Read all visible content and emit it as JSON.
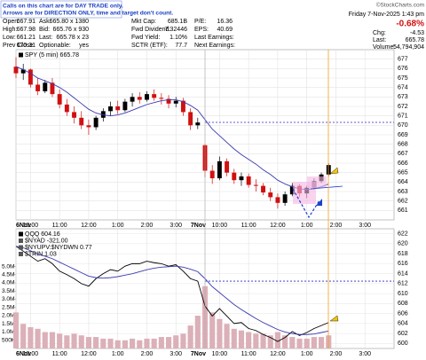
{
  "banner": [
    "Calls on this chart are for DAY TRADE only.",
    "Arrows are for DIRECTION ONLY, time and target don't count."
  ],
  "watermark": "©StockCharts.com",
  "quote": [
    [
      [
        "Open:",
        "667.91"
      ],
      [
        "Ask:",
        "665.80 x 1380"
      ],
      [
        "Mkt Cap:",
        "685.1B"
      ],
      [
        "P/E:",
        "16.36"
      ]
    ],
    [
      [
        "High:",
        "667.98"
      ],
      [
        "Bid:",
        "665.76 x 930"
      ],
      [
        "Fwd Dividend:",
        "7.32446"
      ],
      [
        "EPS:",
        "40.69"
      ]
    ],
    [
      [
        "Low:",
        "661.21"
      ],
      [
        "Last:",
        "665.78 x 23"
      ],
      [
        "Fwd Yield:",
        "1.10%"
      ],
      [
        "Last Earnings:"
      ]
    ],
    [
      [
        "Prev Close:",
        "670.31"
      ],
      [
        "Optionable:",
        "yes"
      ],
      [
        "SCTR (ETF):",
        "77.7"
      ],
      [
        "Next Earnings:"
      ]
    ]
  ],
  "status": {
    "datetime": "Friday  7-Nov-2025  1:43 pm",
    "change_pct": "-0.68%",
    "rows": [
      [
        "Chg:",
        "-4.53"
      ],
      [
        "Last:",
        "665.78"
      ],
      [
        "Volume:",
        "54,794,904"
      ]
    ]
  },
  "chart_data": [
    {
      "type": "candlestick",
      "label": "SPY (5 min) 665.78",
      "x": [
        0,
        3,
        6,
        9,
        12,
        15,
        18,
        21,
        24,
        27,
        30,
        33,
        36,
        39,
        42,
        45,
        48,
        51,
        54,
        57,
        60,
        63,
        66,
        69,
        72,
        75,
        78,
        81,
        84,
        87,
        90,
        93,
        96,
        99,
        102,
        105,
        108,
        111,
        114,
        117,
        120,
        123,
        126,
        129
      ],
      "open": [
        676.2,
        675.5,
        675.9,
        674.3,
        673.6,
        674.5,
        673.3,
        672.2,
        671.4,
        670.8,
        670.0,
        669.8,
        670.8,
        671.5,
        672.0,
        671.6,
        672.5,
        673.0,
        672.7,
        673.3,
        672.9,
        672.8,
        672.3,
        672.6,
        671.4,
        670.0,
        667.9,
        665.2,
        664.4,
        666.2,
        665.0,
        664.2,
        664.6,
        663.7,
        663.6,
        662.9,
        662.4,
        661.8,
        662.7,
        663.6,
        662.8,
        663.4,
        664.1,
        664.8
      ],
      "high": [
        677.2,
        676.5,
        676.0,
        675.0,
        674.8,
        675.0,
        673.8,
        672.8,
        672.0,
        671.5,
        670.6,
        671.0,
        671.8,
        672.5,
        672.6,
        672.8,
        673.4,
        673.5,
        673.6,
        673.8,
        673.4,
        673.2,
        673.0,
        672.9,
        671.8,
        670.8,
        668.0,
        665.8,
        666.7,
        666.5,
        665.4,
        665.0,
        664.9,
        664.3,
        663.9,
        663.4,
        662.8,
        663.0,
        663.9,
        663.8,
        663.6,
        664.4,
        665.0,
        666.0
      ],
      "low": [
        675.0,
        674.8,
        674.0,
        673.2,
        673.4,
        673.0,
        671.8,
        671.0,
        670.2,
        669.6,
        669.0,
        669.5,
        670.4,
        671.0,
        671.2,
        671.4,
        672.0,
        672.3,
        672.5,
        672.6,
        672.2,
        671.8,
        671.9,
        671.0,
        669.5,
        669.6,
        664.5,
        663.8,
        664.2,
        664.6,
        663.8,
        663.6,
        663.4,
        663.0,
        662.6,
        662.0,
        661.2,
        661.5,
        662.5,
        662.4,
        662.3,
        663.2,
        663.9,
        664.6
      ],
      "close": [
        675.5,
        675.9,
        674.3,
        673.6,
        674.5,
        673.3,
        672.2,
        671.4,
        670.8,
        670.0,
        669.8,
        670.8,
        671.5,
        672.0,
        671.6,
        672.5,
        673.0,
        672.7,
        673.3,
        672.9,
        672.8,
        672.3,
        672.6,
        671.4,
        670.0,
        670.3,
        665.2,
        664.4,
        666.2,
        665.0,
        664.2,
        664.6,
        663.7,
        663.6,
        662.9,
        662.4,
        661.8,
        662.7,
        663.6,
        662.8,
        663.4,
        664.1,
        664.8,
        665.8
      ],
      "up_color": "#000000",
      "down_color": "#d01010",
      "series": [
        {
          "color": "#3a3ab0",
          "values": [
            676.2,
            675.9,
            675.5,
            675.0,
            674.7,
            674.4,
            674.0,
            673.5,
            672.9,
            672.3,
            671.7,
            671.3,
            671.1,
            671.0,
            671.1,
            671.3,
            671.6,
            671.9,
            672.2,
            672.4,
            672.6,
            672.7,
            672.7,
            672.5,
            672.1,
            671.6,
            670.6,
            669.6,
            668.9,
            668.2,
            667.5,
            666.9,
            666.4,
            665.9,
            665.3,
            664.8,
            664.2,
            663.8,
            663.5,
            663.3,
            663.2,
            663.3,
            663.5,
            663.8
          ]
        }
      ],
      "ref_line": 670.31,
      "ref_start": 78,
      "ref_color": "#2a2ad0",
      "xlim": [
        0,
        156
      ],
      "ylim": [
        660,
        678
      ],
      "yticks": [
        661,
        662,
        663,
        664,
        665,
        666,
        667,
        668,
        669,
        670,
        671,
        672,
        673,
        674,
        675,
        676,
        677
      ],
      "xticks": [
        {
          "value": 0,
          "label": "6Nov"
        },
        {
          "value": 6,
          "label": "10:00"
        },
        {
          "value": 18,
          "label": "11:00"
        },
        {
          "value": 30,
          "label": "12:00"
        },
        {
          "value": 42,
          "label": "1:00"
        },
        {
          "value": 54,
          "label": "2:00"
        },
        {
          "value": 66,
          "label": "3:00"
        },
        {
          "value": 78,
          "label": "7Nov"
        },
        {
          "value": 84,
          "label": "10:00"
        },
        {
          "value": 96,
          "label": "11:00"
        },
        {
          "value": 108,
          "label": "12:00"
        },
        {
          "value": 120,
          "label": "1:00"
        },
        {
          "value": 132,
          "label": "2:00"
        },
        {
          "value": 144,
          "label": "3:00"
        }
      ],
      "grid": true
    },
    {
      "type": "line",
      "indicators": [
        "$NYAD -321.00",
        "$NYUPV:$NYDWN 0.77",
        "$TRIN 1.03"
      ],
      "x": [
        0,
        3,
        6,
        9,
        12,
        15,
        18,
        21,
        24,
        27,
        30,
        33,
        36,
        39,
        42,
        45,
        48,
        51,
        54,
        57,
        60,
        63,
        66,
        69,
        72,
        75,
        78,
        81,
        84,
        87,
        90,
        93,
        96,
        99,
        102,
        105,
        108,
        111,
        114,
        117,
        120,
        123,
        126,
        129
      ],
      "series": [
        {
          "name": "QQQ 604.16",
          "color": "#000000",
          "values": [
            619.5,
            618.5,
            617.5,
            616.5,
            617.0,
            616.0,
            614.5,
            613.8,
            613.0,
            612.0,
            611.5,
            613.0,
            614.0,
            614.8,
            614.5,
            615.5,
            616.0,
            616.0,
            616.5,
            616.2,
            616.0,
            615.5,
            615.8,
            614.5,
            613.0,
            612.5,
            607.5,
            605.5,
            607.0,
            605.5,
            604.0,
            604.2,
            603.0,
            602.6,
            601.8,
            601.2,
            600.4,
            601.2,
            602.4,
            601.6,
            602.2,
            603.0,
            603.6,
            604.2
          ]
        },
        {
          "color": "#3a3ab0",
          "values": [
            619.5,
            619.2,
            618.6,
            617.9,
            617.5,
            617.0,
            616.3,
            615.6,
            614.9,
            614.2,
            613.5,
            613.2,
            613.1,
            613.2,
            613.4,
            613.7,
            614.0,
            614.4,
            614.8,
            615.1,
            615.3,
            615.4,
            615.5,
            615.3,
            614.9,
            614.4,
            613.0,
            611.4,
            610.2,
            609.0,
            607.8,
            606.8,
            605.9,
            605.0,
            604.2,
            603.5,
            602.8,
            602.3,
            602.0,
            601.8,
            601.8,
            601.9,
            602.2,
            602.5
          ]
        },
        {
          "type": "bar",
          "axis": "y2",
          "color": "#dcb0b8",
          "values": [
            2200000,
            1500000,
            1300000,
            1200000,
            1000000,
            1000000,
            900000,
            800000,
            900000,
            800000,
            700000,
            700000,
            600000,
            600000,
            500000,
            500000,
            600000,
            500000,
            600000,
            600000,
            700000,
            700000,
            800000,
            900000,
            1400000,
            2000000,
            3800000,
            2200000,
            1800000,
            1500000,
            1200000,
            1100000,
            1000000,
            900000,
            900000,
            800000,
            1000000,
            800000,
            700000,
            600000,
            600000,
            700000,
            700000,
            800000
          ]
        }
      ],
      "ref_line": 612.5,
      "ref_start": 78,
      "ref_color": "#2a2ad0",
      "xlim": [
        0,
        156
      ],
      "ylim": [
        599,
        623
      ],
      "y2lim": [
        0,
        7300000
      ],
      "yticks": [
        600,
        602,
        604,
        606,
        608,
        610,
        612,
        614,
        616,
        618,
        620,
        622
      ],
      "y2ticks": [
        {
          "value": 500000,
          "label": "500K"
        },
        {
          "value": 1000000,
          "label": "1.0M"
        },
        {
          "value": 1500000,
          "label": "1.5M"
        },
        {
          "value": 2000000,
          "label": "2.0M"
        },
        {
          "value": 2500000,
          "label": "2.5M"
        },
        {
          "value": 3000000,
          "label": "3.0M"
        },
        {
          "value": 3500000,
          "label": "3.5M"
        },
        {
          "value": 4000000,
          "label": "4.0M"
        },
        {
          "value": 4500000,
          "label": "4.5M"
        },
        {
          "value": 5000000,
          "label": "5.0M"
        }
      ],
      "xticks": [
        {
          "value": 0,
          "label": "6Nov"
        },
        {
          "value": 6,
          "label": "10:00"
        },
        {
          "value": 18,
          "label": "11:00"
        },
        {
          "value": 30,
          "label": "12:00"
        },
        {
          "value": 42,
          "label": "1:00"
        },
        {
          "value": 54,
          "label": "2:00"
        },
        {
          "value": 66,
          "label": "3:00"
        },
        {
          "value": 78,
          "label": "7Nov"
        },
        {
          "value": 84,
          "label": "10:00"
        },
        {
          "value": 96,
          "label": "11:00"
        },
        {
          "value": 108,
          "label": "12:00"
        },
        {
          "value": 120,
          "label": "1:00"
        },
        {
          "value": 132,
          "label": "2:00"
        },
        {
          "value": 144,
          "label": "3:00"
        }
      ],
      "grid": true
    }
  ]
}
